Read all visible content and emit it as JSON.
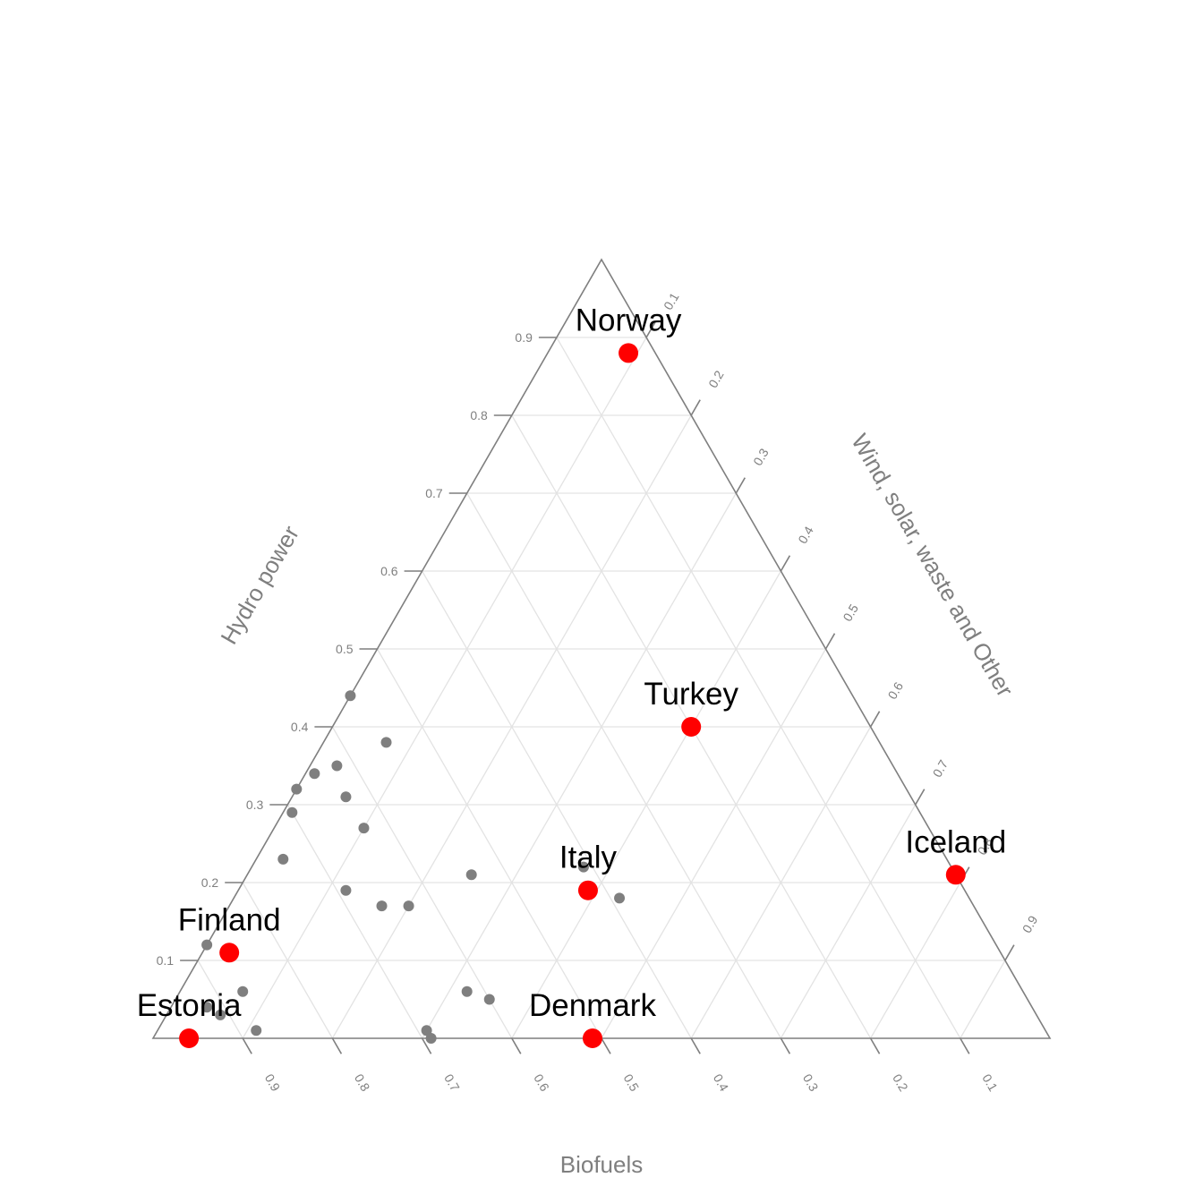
{
  "chart_data": {
    "type": "ternary-scatter",
    "axes": {
      "left": {
        "label": "Hydro power",
        "ticks": [
          0.1,
          0.2,
          0.3,
          0.4,
          0.5,
          0.6,
          0.7,
          0.8,
          0.9
        ]
      },
      "right": {
        "label": "Wind, solar, waste and Other",
        "ticks": [
          0.1,
          0.2,
          0.3,
          0.4,
          0.5,
          0.6,
          0.7,
          0.8,
          0.9
        ]
      },
      "bottom": {
        "label": "Biofuels",
        "ticks": [
          0.9,
          0.8,
          0.7,
          0.6,
          0.5,
          0.4,
          0.3,
          0.2,
          0.1
        ]
      }
    },
    "grid": true,
    "colors": {
      "highlight": "#ff0000",
      "other": "#7f7f7f",
      "axis": "#7f7f7f",
      "grid": "#e3e3e3"
    },
    "highlighted": [
      {
        "name": "Norway",
        "hydro": 0.88,
        "wind_other": 0.09,
        "biofuels": 0.03
      },
      {
        "name": "Turkey",
        "hydro": 0.4,
        "wind_other": 0.4,
        "biofuels": 0.2
      },
      {
        "name": "Italy",
        "hydro": 0.19,
        "wind_other": 0.39,
        "biofuels": 0.42
      },
      {
        "name": "Iceland",
        "hydro": 0.21,
        "wind_other": 0.79,
        "biofuels": 0.0
      },
      {
        "name": "Finland",
        "hydro": 0.11,
        "wind_other": 0.03,
        "biofuels": 0.86
      },
      {
        "name": "Estonia",
        "hydro": 0.0,
        "wind_other": 0.04,
        "biofuels": 0.96
      },
      {
        "name": "Denmark",
        "hydro": 0.0,
        "wind_other": 0.49,
        "biofuels": 0.51
      }
    ],
    "others": [
      {
        "hydro": 0.44,
        "wind_other": 0.0,
        "biofuels": 0.56
      },
      {
        "hydro": 0.38,
        "wind_other": 0.07,
        "biofuels": 0.55
      },
      {
        "hydro": 0.35,
        "wind_other": 0.03,
        "biofuels": 0.62
      },
      {
        "hydro": 0.34,
        "wind_other": 0.01,
        "biofuels": 0.65
      },
      {
        "hydro": 0.32,
        "wind_other": 0.0,
        "biofuels": 0.68
      },
      {
        "hydro": 0.31,
        "wind_other": 0.06,
        "biofuels": 0.63
      },
      {
        "hydro": 0.29,
        "wind_other": 0.01,
        "biofuels": 0.7
      },
      {
        "hydro": 0.27,
        "wind_other": 0.1,
        "biofuels": 0.63
      },
      {
        "hydro": 0.23,
        "wind_other": 0.03,
        "biofuels": 0.74
      },
      {
        "hydro": 0.21,
        "wind_other": 0.25,
        "biofuels": 0.54
      },
      {
        "hydro": 0.22,
        "wind_other": 0.37,
        "biofuels": 0.41
      },
      {
        "hydro": 0.19,
        "wind_other": 0.12,
        "biofuels": 0.69
      },
      {
        "hydro": 0.18,
        "wind_other": 0.43,
        "biofuels": 0.39
      },
      {
        "hydro": 0.17,
        "wind_other": 0.17,
        "biofuels": 0.66
      },
      {
        "hydro": 0.17,
        "wind_other": 0.2,
        "biofuels": 0.63
      },
      {
        "hydro": 0.12,
        "wind_other": 0.0,
        "biofuels": 0.88
      },
      {
        "hydro": 0.06,
        "wind_other": 0.07,
        "biofuels": 0.87
      },
      {
        "hydro": 0.06,
        "wind_other": 0.32,
        "biofuels": 0.62
      },
      {
        "hydro": 0.05,
        "wind_other": 0.35,
        "biofuels": 0.6
      },
      {
        "hydro": 0.04,
        "wind_other": 0.04,
        "biofuels": 0.92
      },
      {
        "hydro": 0.03,
        "wind_other": 0.06,
        "biofuels": 0.91
      },
      {
        "hydro": 0.01,
        "wind_other": 0.11,
        "biofuels": 0.88
      },
      {
        "hydro": 0.01,
        "wind_other": 0.3,
        "biofuels": 0.69
      },
      {
        "hydro": 0.0,
        "wind_other": 0.31,
        "biofuels": 0.69
      }
    ]
  }
}
